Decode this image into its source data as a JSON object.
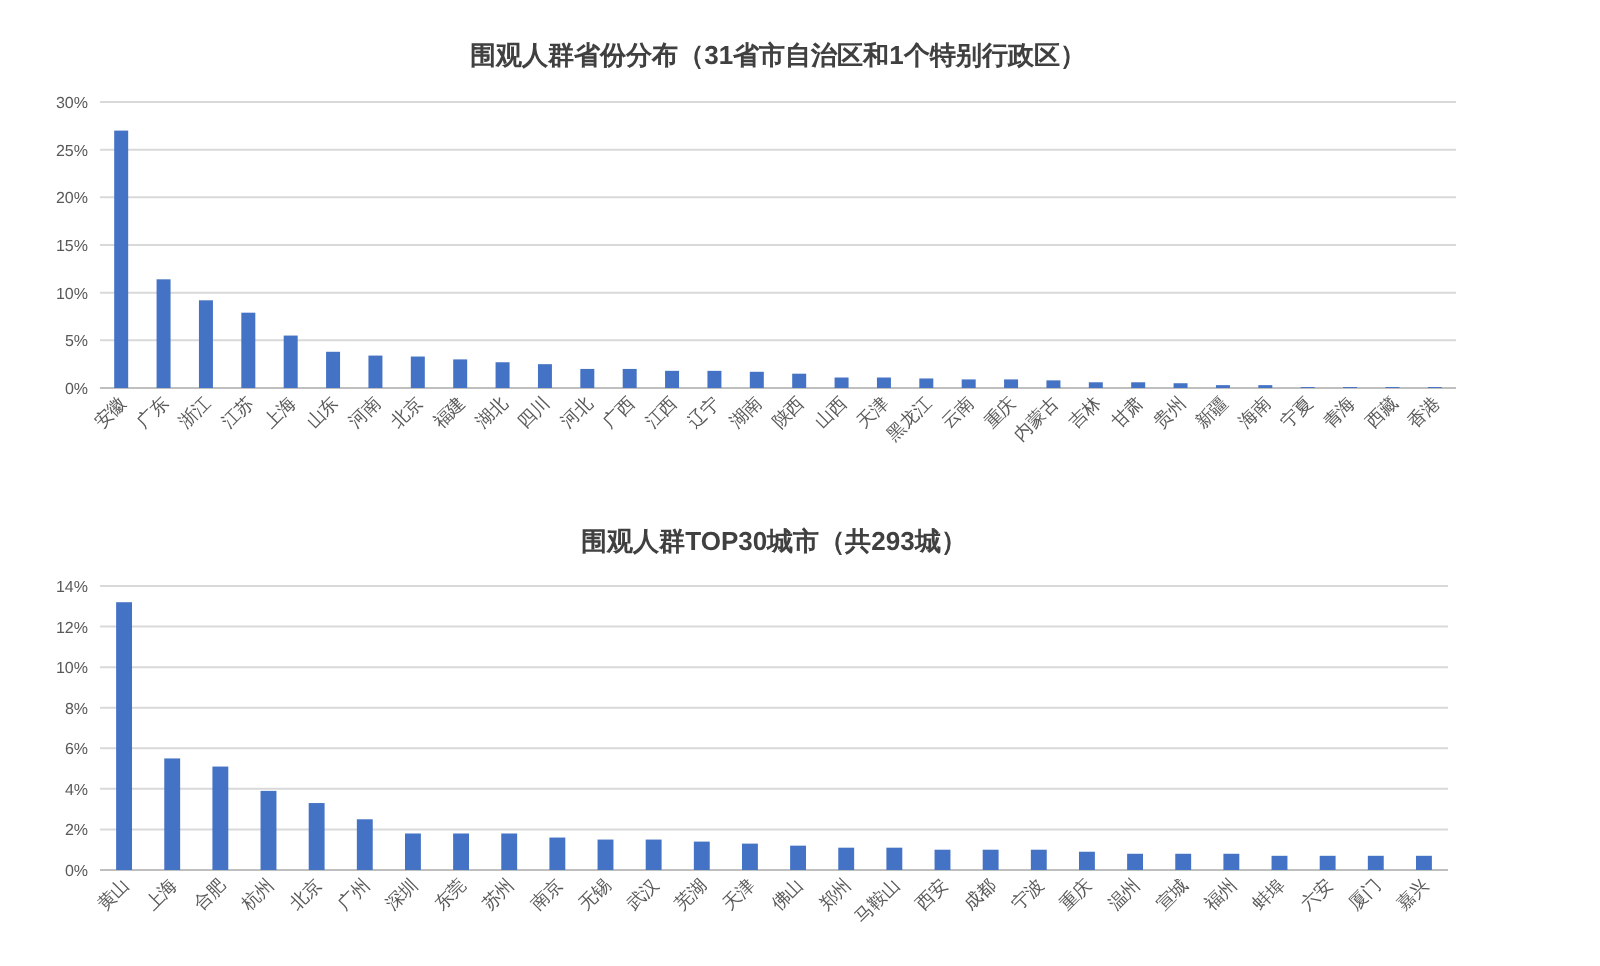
{
  "chart_data": [
    {
      "type": "bar",
      "title": "围观人群省份分布（31省市自治区和1个特别行政区）",
      "categories": [
        "安徽",
        "广东",
        "浙江",
        "江苏",
        "上海",
        "山东",
        "河南",
        "北京",
        "福建",
        "湖北",
        "四川",
        "河北",
        "广西",
        "江西",
        "辽宁",
        "湖南",
        "陕西",
        "山西",
        "天津",
        "黑龙江",
        "云南",
        "重庆",
        "内蒙古",
        "吉林",
        "甘肃",
        "贵州",
        "新疆",
        "海南",
        "宁夏",
        "青海",
        "西藏",
        "香港"
      ],
      "values": [
        27.0,
        11.4,
        9.2,
        7.9,
        5.5,
        3.8,
        3.4,
        3.3,
        3.0,
        2.7,
        2.5,
        2.0,
        2.0,
        1.8,
        1.8,
        1.7,
        1.5,
        1.1,
        1.1,
        1.0,
        0.9,
        0.9,
        0.8,
        0.6,
        0.6,
        0.5,
        0.3,
        0.3,
        0.1,
        0.1,
        0.1,
        0.1
      ],
      "color": "#4472c4",
      "ylim": [
        0,
        30
      ],
      "yticks": [
        {
          "value": 0,
          "label": "0%"
        },
        {
          "value": 5,
          "label": "5%"
        },
        {
          "value": 10,
          "label": "10%"
        },
        {
          "value": 15,
          "label": "15%"
        },
        {
          "value": 20,
          "label": "20%"
        },
        {
          "value": 25,
          "label": "25%"
        },
        {
          "value": 30,
          "label": "30%"
        }
      ],
      "grid": "y"
    },
    {
      "type": "bar",
      "title": "围观人群TOP30城市（共293城）",
      "categories": [
        "黄山",
        "上海",
        "合肥",
        "杭州",
        "北京",
        "广州",
        "深圳",
        "东莞",
        "苏州",
        "南京",
        "无锡",
        "武汉",
        "芜湖",
        "天津",
        "佛山",
        "郑州",
        "马鞍山",
        "西安",
        "成都",
        "宁波",
        "重庆",
        "温州",
        "宣城",
        "福州",
        "蚌埠",
        "六安",
        "厦门",
        "嘉兴"
      ],
      "values": [
        13.2,
        5.5,
        5.1,
        3.9,
        3.3,
        2.5,
        1.8,
        1.8,
        1.8,
        1.6,
        1.5,
        1.5,
        1.4,
        1.3,
        1.2,
        1.1,
        1.1,
        1.0,
        1.0,
        1.0,
        0.9,
        0.8,
        0.8,
        0.8,
        0.7,
        0.7,
        0.7,
        0.7
      ],
      "color": "#4472c4",
      "ylim": [
        0,
        14
      ],
      "yticks": [
        {
          "value": 0,
          "label": "0%"
        },
        {
          "value": 2,
          "label": "2%"
        },
        {
          "value": 4,
          "label": "4%"
        },
        {
          "value": 6,
          "label": "6%"
        },
        {
          "value": 8,
          "label": "8%"
        },
        {
          "value": 10,
          "label": "10%"
        },
        {
          "value": 12,
          "label": "12%"
        },
        {
          "value": 14,
          "label": "14%"
        }
      ],
      "grid": "y"
    }
  ]
}
